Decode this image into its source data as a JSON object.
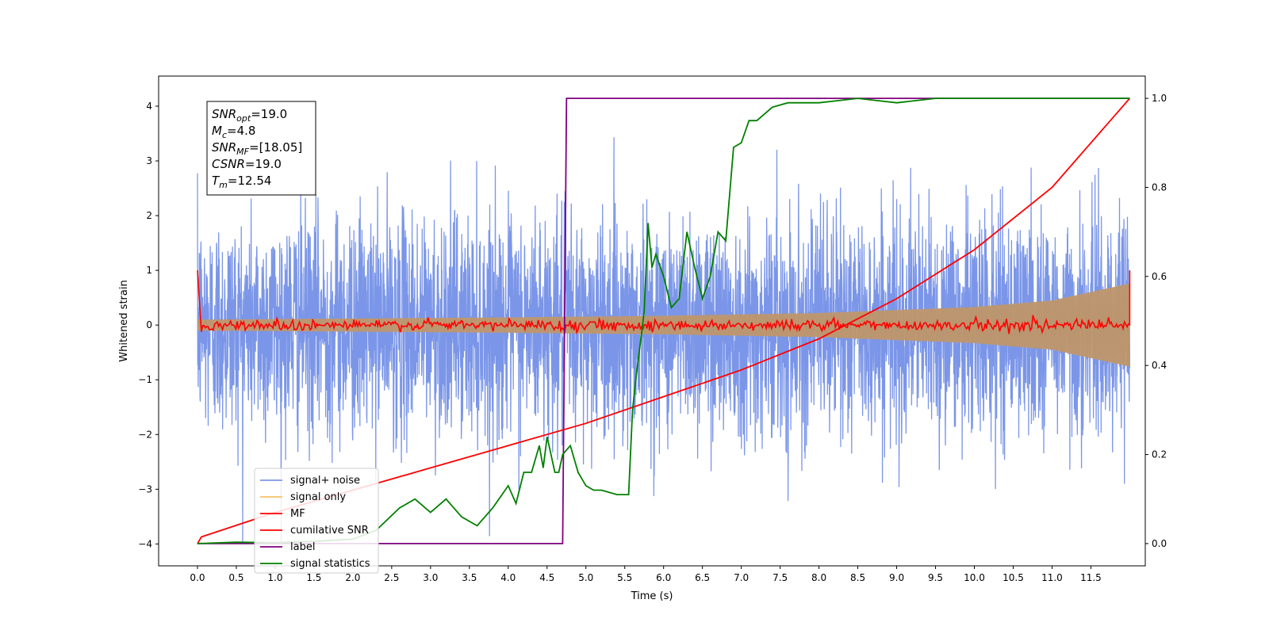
{
  "chart_data": {
    "type": "line",
    "xlabel": "Time (s)",
    "ylabel": "Whitened strain",
    "xlim": [
      -0.5,
      12.2
    ],
    "ylim": [
      -4.4,
      4.55
    ],
    "ylim_right": [
      -0.05,
      1.05
    ],
    "x_ticks": [
      "0.0",
      "0.5",
      "1.0",
      "1.5",
      "2.0",
      "2.5",
      "3.0",
      "3.5",
      "4.0",
      "4.5",
      "5.0",
      "5.5",
      "6.0",
      "6.5",
      "7.0",
      "7.5",
      "8.0",
      "8.5",
      "9.0",
      "9.5",
      "10.0",
      "10.5",
      "11.0",
      "11.5"
    ],
    "y_ticks": [
      "4",
      "3",
      "2",
      "1",
      "0",
      "−1",
      "−2",
      "−3",
      "−4"
    ],
    "y_ticks_right": [
      "1.0",
      "0.8",
      "0.6",
      "0.4",
      "0.2",
      "0.0"
    ],
    "annotation": {
      "lines": [
        {
          "var": "SNR",
          "sub": "opt",
          "value": "=19.0"
        },
        {
          "var": "M",
          "sub": "c",
          "value": "=4.8"
        },
        {
          "var": "SNR",
          "sub": "MF",
          "value": "=[18.05]"
        },
        {
          "var": "CSNR",
          "sub": "",
          "value": "=19.0"
        },
        {
          "var": "T",
          "sub": "m",
          "value": "=12.54"
        }
      ]
    },
    "legend": {
      "location": "lower-left",
      "entries": [
        {
          "label": "signal+ noise",
          "color": "#7b96e8"
        },
        {
          "label": "signal only",
          "color": "#f5c36a"
        },
        {
          "label": "MF",
          "color": "#ff0000"
        },
        {
          "label": "cumilative SNR",
          "color": "#ff0000"
        },
        {
          "label": "label",
          "color": "#800080"
        },
        {
          "label": "signal statistics",
          "color": "#008000"
        }
      ]
    },
    "series": [
      {
        "name": "signal+ noise",
        "axis": "left",
        "noise_sigma": 1.0,
        "x_range": [
          0.0,
          12.0
        ]
      },
      {
        "name": "signal only",
        "axis": "left",
        "envelope": {
          "x": [
            0,
            2,
            4,
            6,
            8,
            10,
            11,
            12
          ],
          "amp": [
            0.1,
            0.12,
            0.14,
            0.17,
            0.22,
            0.33,
            0.45,
            0.76
          ]
        }
      },
      {
        "name": "MF",
        "axis": "left",
        "x": [
          0.0,
          0.05,
          12.0,
          12.0
        ],
        "y": [
          1.0,
          0.03,
          0.0,
          1.0
        ],
        "jitter": 0.05
      },
      {
        "name": "cumilative SNR",
        "axis": "right",
        "x": [
          0.0,
          0.05,
          1,
          2,
          3,
          4,
          5,
          6,
          7,
          8,
          9,
          10,
          11,
          12
        ],
        "y": [
          0.0,
          0.015,
          0.07,
          0.12,
          0.17,
          0.22,
          0.27,
          0.33,
          0.39,
          0.46,
          0.55,
          0.66,
          0.8,
          1.0
        ]
      },
      {
        "name": "label",
        "axis": "right",
        "x": [
          0.0,
          4.7,
          4.75,
          12.0
        ],
        "y": [
          0.0,
          0.0,
          1.0,
          1.0
        ]
      },
      {
        "name": "signal statistics",
        "axis": "right",
        "x": [
          0.0,
          0.5,
          1.0,
          1.5,
          2.0,
          2.3,
          2.6,
          2.8,
          3.0,
          3.2,
          3.4,
          3.6,
          3.8,
          4.0,
          4.1,
          4.2,
          4.3,
          4.4,
          4.45,
          4.5,
          4.6,
          4.65,
          4.7,
          4.8,
          4.9,
          5.0,
          5.1,
          5.2,
          5.4,
          5.55,
          5.6,
          5.65,
          5.7,
          5.75,
          5.8,
          5.85,
          5.9,
          6.0,
          6.1,
          6.2,
          6.3,
          6.4,
          6.5,
          6.6,
          6.7,
          6.8,
          6.9,
          7.0,
          7.1,
          7.2,
          7.4,
          7.6,
          7.8,
          8.0,
          8.5,
          9.0,
          9.5,
          10.0,
          11.0,
          12.0
        ],
        "y": [
          0.0,
          0.003,
          0.002,
          0.005,
          0.01,
          0.03,
          0.08,
          0.1,
          0.07,
          0.1,
          0.06,
          0.04,
          0.08,
          0.13,
          0.09,
          0.16,
          0.16,
          0.22,
          0.17,
          0.24,
          0.16,
          0.16,
          0.2,
          0.22,
          0.16,
          0.13,
          0.12,
          0.12,
          0.11,
          0.11,
          0.3,
          0.38,
          0.45,
          0.52,
          0.72,
          0.62,
          0.65,
          0.6,
          0.53,
          0.55,
          0.7,
          0.62,
          0.55,
          0.6,
          0.7,
          0.68,
          0.89,
          0.9,
          0.95,
          0.95,
          0.98,
          0.99,
          0.99,
          0.99,
          1.0,
          0.99,
          1.0,
          1.0,
          1.0,
          1.0
        ]
      }
    ]
  }
}
